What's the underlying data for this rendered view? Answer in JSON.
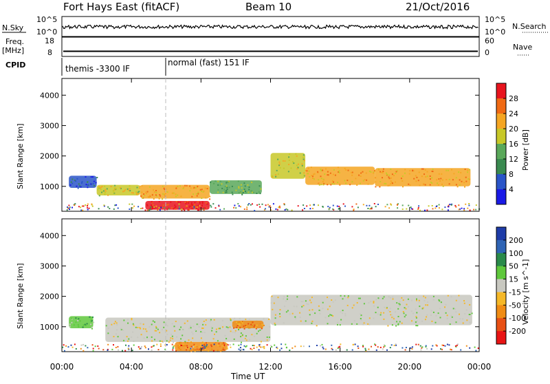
{
  "header": {
    "title": "Fort Hays East (fitACF)",
    "beam": "Beam 10",
    "date": "21/Oct/2016"
  },
  "sky_panel": {
    "left_label": "N.Sky",
    "right_label": "N.Search",
    "left_ticks": [
      "10^5",
      "10^0"
    ],
    "right_ticks": [
      "10^5",
      "10^0"
    ]
  },
  "freq_panel": {
    "left_label_line1": "Freq.",
    "left_label_line2": "[MHz]",
    "right_label": "Nave",
    "left_ticks": [
      "18",
      "8"
    ],
    "right_ticks": [
      "60",
      "0"
    ],
    "freq_level": 10.5
  },
  "cpid": {
    "label": "CPID",
    "segments": [
      {
        "text": "themis -3300 IF",
        "start_hour": 0,
        "end_hour": 6
      },
      {
        "text": "normal (fast) 151 IF",
        "start_hour": 6,
        "end_hour": 24
      }
    ]
  },
  "time_axis": {
    "label": "Time UT",
    "ticks": [
      "00:00",
      "04:00",
      "08:00",
      "12:00",
      "16:00",
      "20:00",
      "00:00"
    ]
  },
  "power_panel": {
    "ylabel": "Slant Range [km]",
    "yticks": [
      "1000",
      "2000",
      "3000",
      "4000"
    ],
    "colorbar_label": "Power [dB]",
    "colorbar_ticks": [
      "4",
      "8",
      "12",
      "16",
      "20",
      "24",
      "28"
    ],
    "colors": [
      "#1a1ae6",
      "#2a55c8",
      "#3a8a50",
      "#5aa85a",
      "#c8c828",
      "#f5a623",
      "#f06a14",
      "#e8141e"
    ]
  },
  "velocity_panel": {
    "ylabel": "Slant Range [km]",
    "yticks": [
      "1000",
      "2000",
      "3000",
      "4000"
    ],
    "colorbar_label": "Velocity [m s^-1]",
    "colorbar_ticks": [
      "200",
      "100",
      "50",
      "15",
      "-15",
      "-50",
      "-100",
      "-200"
    ],
    "colors": [
      "#1e3ca8",
      "#2f64b4",
      "#2a8a4a",
      "#5fc83c",
      "#c8c8c0",
      "#f5b828",
      "#f08c14",
      "#e85014",
      "#e81414"
    ]
  },
  "chart_data": {
    "type": "heatmap",
    "x_range_hours": [
      0,
      24
    ],
    "y_range_km": [
      180,
      4550
    ],
    "power_bands": [
      {
        "x_start": 0.4,
        "x_end": 2.0,
        "y_low": 950,
        "y_high": 1350,
        "level": 1
      },
      {
        "x_start": 2.0,
        "x_end": 4.5,
        "y_low": 700,
        "y_high": 1050,
        "level": 4
      },
      {
        "x_start": 4.5,
        "x_end": 8.5,
        "y_low": 600,
        "y_high": 1050,
        "level": 5
      },
      {
        "x_start": 8.5,
        "x_end": 11.5,
        "y_low": 750,
        "y_high": 1200,
        "level": 3
      },
      {
        "x_start": 12.0,
        "x_end": 14.0,
        "y_low": 1250,
        "y_high": 2100,
        "level": 4
      },
      {
        "x_start": 14.0,
        "x_end": 18.0,
        "y_low": 1050,
        "y_high": 1650,
        "level": 5
      },
      {
        "x_start": 18.0,
        "x_end": 23.5,
        "y_low": 1000,
        "y_high": 1600,
        "level": 5
      },
      {
        "x_start": 4.8,
        "x_end": 8.5,
        "y_low": 230,
        "y_high": 520,
        "level": 7
      }
    ],
    "velocity_bands": [
      {
        "x_start": 0.4,
        "x_end": 1.8,
        "y_low": 950,
        "y_high": 1350,
        "level": 3
      },
      {
        "x_start": 2.5,
        "x_end": 12.0,
        "y_low": 500,
        "y_high": 1300,
        "level": 4
      },
      {
        "x_start": 9.8,
        "x_end": 11.6,
        "y_low": 950,
        "y_high": 1200,
        "level": 6
      },
      {
        "x_start": 12.0,
        "x_end": 23.6,
        "y_low": 1050,
        "y_high": 2050,
        "level": 4
      },
      {
        "x_start": 6.5,
        "x_end": 9.5,
        "y_low": 200,
        "y_high": 500,
        "level": 6
      }
    ]
  }
}
